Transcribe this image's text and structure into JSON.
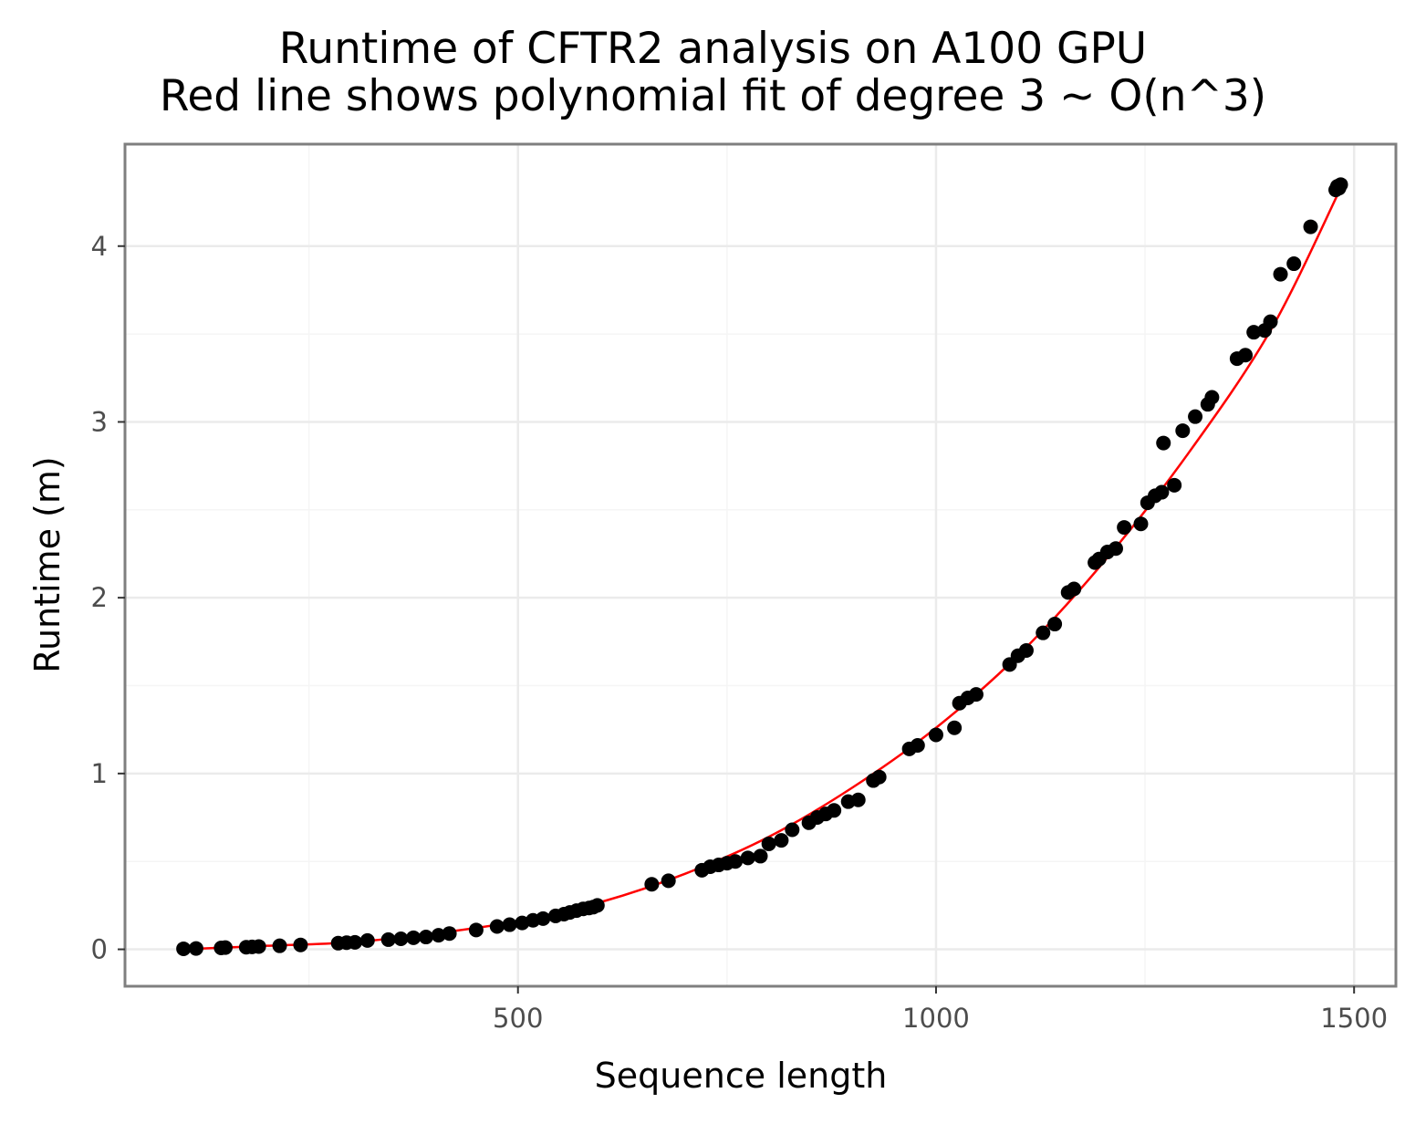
{
  "chart_data": {
    "type": "scatter",
    "title": "Runtime of CFTR2 analysis on A100 GPU",
    "subtitle": "Red line shows polynomial fit of degree 3 ~ O(n^3)",
    "xlabel": "Sequence length",
    "ylabel": "Runtime (m)",
    "xlim": [
      30,
      1550
    ],
    "ylim": [
      -0.21,
      4.58
    ],
    "xticks": [
      500,
      1000,
      1500
    ],
    "yticks": [
      0,
      1,
      2,
      3,
      4
    ],
    "grid": true,
    "colors": {
      "points": "#000000",
      "fit_line": "#ff0000",
      "panel_border": "#7f7f7f",
      "grid": "#ebebeb"
    },
    "series": [
      {
        "type": "scatter",
        "x": [
          100,
          115,
          145,
          150,
          175,
          182,
          190,
          215,
          240,
          285,
          295,
          305,
          320,
          345,
          360,
          375,
          390,
          405,
          418,
          450,
          475,
          490,
          505,
          518,
          530,
          545,
          555,
          562,
          570,
          578,
          585,
          590,
          595,
          660,
          680,
          720,
          730,
          740,
          750,
          760,
          775,
          790,
          800,
          815,
          828,
          848,
          858,
          868,
          878,
          895,
          907,
          925,
          932,
          968,
          978,
          1000,
          1022,
          1028,
          1038,
          1048,
          1088,
          1098,
          1108,
          1128,
          1142,
          1158,
          1165,
          1190,
          1195,
          1205,
          1215,
          1225,
          1245,
          1253,
          1262,
          1270,
          1272,
          1285,
          1295,
          1310,
          1325,
          1330,
          1360,
          1370,
          1380,
          1393,
          1400,
          1412,
          1428,
          1448,
          1478,
          1480,
          1482,
          1484
        ],
        "y": [
          0.003,
          0.005,
          0.008,
          0.01,
          0.012,
          0.014,
          0.016,
          0.02,
          0.025,
          0.035,
          0.038,
          0.04,
          0.05,
          0.055,
          0.06,
          0.066,
          0.07,
          0.08,
          0.09,
          0.11,
          0.13,
          0.14,
          0.15,
          0.165,
          0.175,
          0.19,
          0.2,
          0.21,
          0.22,
          0.23,
          0.235,
          0.24,
          0.25,
          0.37,
          0.39,
          0.45,
          0.47,
          0.48,
          0.49,
          0.5,
          0.52,
          0.53,
          0.6,
          0.62,
          0.68,
          0.72,
          0.75,
          0.77,
          0.79,
          0.84,
          0.85,
          0.96,
          0.98,
          1.14,
          1.16,
          1.22,
          1.26,
          1.4,
          1.43,
          1.45,
          1.62,
          1.67,
          1.7,
          1.8,
          1.85,
          2.03,
          2.05,
          2.2,
          2.22,
          2.26,
          2.28,
          2.4,
          2.42,
          2.54,
          2.58,
          2.6,
          2.88,
          2.64,
          2.95,
          3.03,
          3.1,
          3.14,
          3.36,
          3.38,
          3.51,
          3.52,
          3.57,
          3.84,
          3.9,
          4.11,
          4.32,
          4.34,
          4.33,
          4.35
        ]
      },
      {
        "type": "line",
        "name": "",
        "description_fit": "polynomial degree 3",
        "x": [
          100,
          200,
          300,
          400,
          500,
          600,
          700,
          800,
          900,
          1000,
          1100,
          1200,
          1300,
          1400,
          1484
        ],
        "y": [
          0.0,
          0.02,
          0.04,
          0.09,
          0.16,
          0.27,
          0.43,
          0.64,
          0.92,
          1.26,
          1.68,
          2.2,
          2.81,
          3.52,
          4.33
        ]
      }
    ]
  }
}
